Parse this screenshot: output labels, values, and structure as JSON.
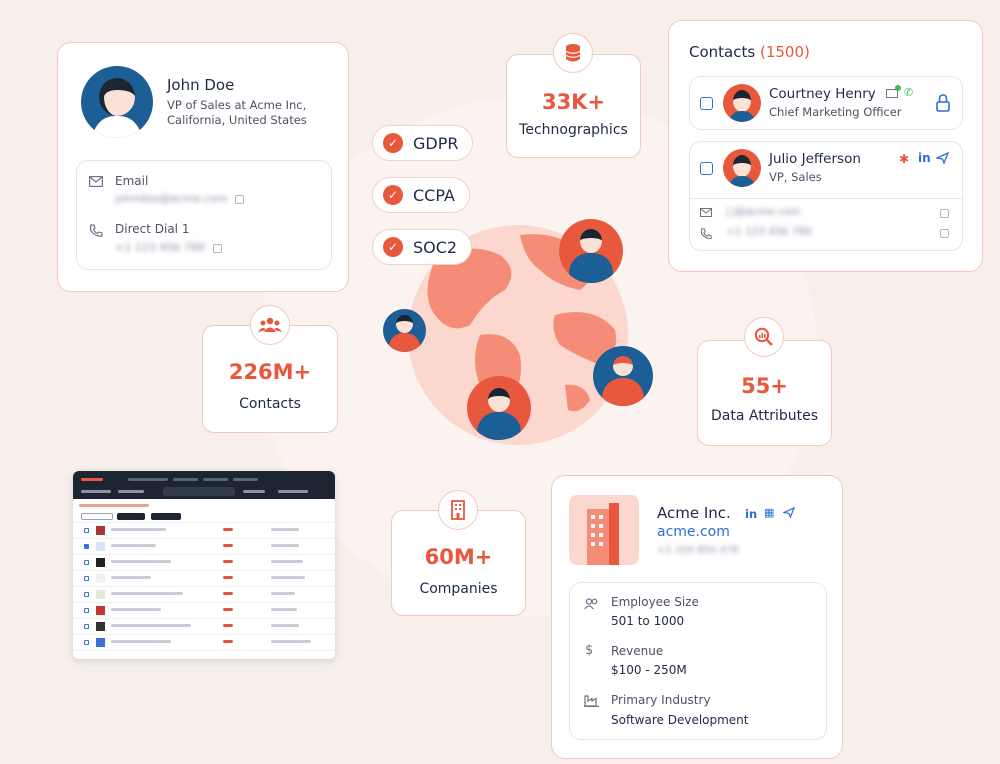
{
  "profile": {
    "name": "John Doe",
    "title_line1": "VP of Sales at Acme Inc,",
    "title_line2": "California, United States",
    "email_label": "Email",
    "email_value": "johndoe@acme.com",
    "phone_label": "Direct Dial 1",
    "phone_value": "+1 123 456 789"
  },
  "certifications": [
    "GDPR",
    "CCPA",
    "SOC2"
  ],
  "stats": {
    "technographics": {
      "value": "33K+",
      "label": "Technographics",
      "icon": "database-icon"
    },
    "contacts": {
      "value": "226M+",
      "label": "Contacts",
      "icon": "people-icon"
    },
    "attributes": {
      "value": "55+",
      "label": "Data Attributes",
      "icon": "magnifier-chart-icon"
    },
    "companies": {
      "value": "60M+",
      "label": "Companies",
      "icon": "building-icon"
    }
  },
  "contacts_panel": {
    "title": "Contacts",
    "count": "(1500)",
    "people": [
      {
        "name": "Courtney Henry",
        "role": "Chief Marketing Officer"
      },
      {
        "name": "Julio Jefferson",
        "role": "VP, Sales"
      }
    ],
    "linkedin": "in",
    "email_value": "j.j@acme.com",
    "phone_value": "+1 123 456 789"
  },
  "company": {
    "name": "Acme Inc.",
    "website": "acme.com",
    "phone": "+1 326 854 478",
    "linkedin": "in",
    "fields": [
      {
        "label": "Employee Size",
        "value": "501 to 1000",
        "icon": "people-icon"
      },
      {
        "label": "Revenue",
        "value": "$100 - 250M",
        "icon": "dollar-icon"
      },
      {
        "label": "Primary Industry",
        "value": "Software Development",
        "icon": "factory-icon"
      }
    ]
  },
  "colors": {
    "accent": "#e8583d",
    "navy": "#1f2a44",
    "link": "#2a6fd6",
    "globe": "#f9b4a4",
    "background": "#f6efea"
  }
}
